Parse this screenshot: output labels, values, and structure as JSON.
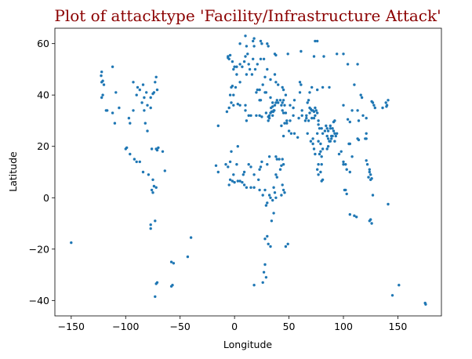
{
  "chart_data": {
    "type": "scatter",
    "title": "Plot of attacktype 'Facility/Infrastructure Attack'",
    "xlabel": "Longitude",
    "ylabel": "Latitude",
    "xlim": [
      -165,
      190
    ],
    "ylim": [
      -46,
      66
    ],
    "xticks": [
      -150,
      -100,
      -50,
      0,
      50,
      100,
      150
    ],
    "yticks": [
      -40,
      -20,
      0,
      20,
      40,
      60
    ],
    "grid": false,
    "legend": "none",
    "colors": {
      "title": "#8b0000",
      "marker": "#1f77b4"
    },
    "points": [
      [
        -150,
        -17.5
      ],
      [
        -122,
        49
      ],
      [
        -122.5,
        47.5
      ],
      [
        -121,
        45.5
      ],
      [
        -122,
        45
      ],
      [
        -120,
        44
      ],
      [
        -117,
        34
      ],
      [
        -118,
        34
      ],
      [
        -122,
        39
      ],
      [
        -121,
        40
      ],
      [
        -112,
        51
      ],
      [
        -109,
        41
      ],
      [
        -112,
        33
      ],
      [
        -110,
        29
      ],
      [
        -106,
        35
      ],
      [
        -97,
        31
      ],
      [
        -93,
        45
      ],
      [
        -90,
        40
      ],
      [
        -87,
        42
      ],
      [
        -89,
        43
      ],
      [
        -84,
        44
      ],
      [
        -83,
        39
      ],
      [
        -81,
        41
      ],
      [
        -80,
        36
      ],
      [
        -77,
        39
      ],
      [
        -75,
        40.5
      ],
      [
        -74,
        41
      ],
      [
        -71,
        42
      ],
      [
        -73,
        45
      ],
      [
        -72,
        47
      ],
      [
        -77,
        35
      ],
      [
        -80,
        26
      ],
      [
        -82,
        29
      ],
      [
        -83,
        34
      ],
      [
        -85,
        37
      ],
      [
        -93,
        34
      ],
      [
        -96,
        29
      ],
      [
        -100,
        19
      ],
      [
        -99,
        19.5
      ],
      [
        -96,
        17
      ],
      [
        -92,
        15
      ],
      [
        -90,
        14
      ],
      [
        -87,
        14
      ],
      [
        -84,
        10
      ],
      [
        -79,
        9
      ],
      [
        -76,
        19
      ],
      [
        -72,
        19
      ],
      [
        -71,
        18.5
      ],
      [
        -70,
        19.5
      ],
      [
        -66,
        18
      ],
      [
        -64,
        10.5
      ],
      [
        -75,
        7
      ],
      [
        -74,
        4.5
      ],
      [
        -75,
        2
      ],
      [
        -76,
        3
      ],
      [
        -72,
        4
      ],
      [
        -73,
        -9
      ],
      [
        -77,
        -12
      ],
      [
        -77,
        -10.5
      ],
      [
        -72,
        -33.5
      ],
      [
        -71,
        -33
      ],
      [
        -73,
        -38.5
      ],
      [
        -58,
        -34.5
      ],
      [
        -57,
        -34
      ],
      [
        -58,
        -25
      ],
      [
        -56,
        -25.5
      ],
      [
        -43,
        -23
      ],
      [
        -40,
        -15.5
      ],
      [
        -17,
        12.5
      ],
      [
        -15,
        10
      ],
      [
        -8,
        13
      ],
      [
        -7,
        33.5
      ],
      [
        -6,
        54.5
      ],
      [
        -6,
        55
      ],
      [
        -5,
        54
      ],
      [
        -4,
        55.5
      ],
      [
        -2,
        53
      ],
      [
        0,
        51
      ],
      [
        -1,
        50
      ],
      [
        2,
        48
      ],
      [
        2,
        51
      ],
      [
        -3,
        43
      ],
      [
        -2,
        43.5
      ],
      [
        1,
        43
      ],
      [
        -4,
        40
      ],
      [
        -3,
        37
      ],
      [
        -1,
        40
      ],
      [
        5,
        45
      ],
      [
        5,
        52
      ],
      [
        7,
        51
      ],
      [
        9,
        53
      ],
      [
        10,
        55
      ],
      [
        12,
        56
      ],
      [
        13,
        52
      ],
      [
        11,
        48
      ],
      [
        14,
        50
      ],
      [
        16,
        48
      ],
      [
        17,
        54
      ],
      [
        19,
        50
      ],
      [
        21,
        52
      ],
      [
        24,
        54
      ],
      [
        27,
        54
      ],
      [
        30,
        50
      ],
      [
        28,
        47
      ],
      [
        26,
        44
      ],
      [
        23,
        42
      ],
      [
        21,
        42
      ],
      [
        20,
        41
      ],
      [
        23,
        38
      ],
      [
        24,
        38
      ],
      [
        28,
        41
      ],
      [
        29,
        41
      ],
      [
        33,
        39
      ],
      [
        35,
        37
      ],
      [
        36,
        34
      ],
      [
        35,
        32
      ],
      [
        34,
        33.5
      ],
      [
        32,
        31
      ],
      [
        31,
        30
      ],
      [
        33,
        46
      ],
      [
        37,
        48
      ],
      [
        38,
        45
      ],
      [
        40,
        44
      ],
      [
        44,
        43
      ],
      [
        45,
        42
      ],
      [
        47,
        40
      ],
      [
        44,
        34
      ],
      [
        45,
        33
      ],
      [
        43,
        36
      ],
      [
        44,
        37
      ],
      [
        46,
        29
      ],
      [
        48,
        29
      ],
      [
        50,
        26
      ],
      [
        52,
        25
      ],
      [
        55,
        25
      ],
      [
        58,
        23.5
      ],
      [
        51,
        36
      ],
      [
        54,
        35
      ],
      [
        55,
        38
      ],
      [
        60,
        41
      ],
      [
        61,
        44
      ],
      [
        69,
        41
      ],
      [
        71,
        43
      ],
      [
        68,
        38
      ],
      [
        69,
        35
      ],
      [
        70,
        34.5
      ],
      [
        71,
        34
      ],
      [
        72,
        34
      ],
      [
        73,
        33.5
      ],
      [
        74,
        32
      ],
      [
        71,
        31
      ],
      [
        73,
        31
      ],
      [
        68,
        30
      ],
      [
        67,
        25
      ],
      [
        66,
        32
      ],
      [
        74,
        35
      ],
      [
        75,
        34
      ],
      [
        76,
        33
      ],
      [
        77,
        30
      ],
      [
        77,
        28.5
      ],
      [
        78,
        27
      ],
      [
        80,
        27
      ],
      [
        81,
        25
      ],
      [
        83,
        26
      ],
      [
        85,
        27
      ],
      [
        86,
        26
      ],
      [
        88,
        27
      ],
      [
        85,
        24
      ],
      [
        86,
        23
      ],
      [
        88,
        22
      ],
      [
        89,
        24
      ],
      [
        90,
        24
      ],
      [
        91,
        26
      ],
      [
        92,
        25
      ],
      [
        93,
        24
      ],
      [
        94,
        25
      ],
      [
        89,
        23
      ],
      [
        92,
        22
      ],
      [
        90,
        27
      ],
      [
        88,
        28
      ],
      [
        84,
        28
      ],
      [
        76,
        25
      ],
      [
        77,
        22
      ],
      [
        79,
        21
      ],
      [
        81,
        19
      ],
      [
        79,
        18
      ],
      [
        78,
        17
      ],
      [
        80,
        16
      ],
      [
        80,
        13
      ],
      [
        77,
        13
      ],
      [
        76,
        11
      ],
      [
        79,
        10
      ],
      [
        81,
        7
      ],
      [
        80,
        6.5
      ],
      [
        77,
        9
      ],
      [
        73,
        19
      ],
      [
        74,
        17
      ],
      [
        72,
        21
      ],
      [
        70,
        22
      ],
      [
        72,
        23
      ],
      [
        85,
        19
      ],
      [
        86,
        20
      ],
      [
        87,
        22
      ],
      [
        96,
        17
      ],
      [
        98,
        18
      ],
      [
        100,
        14
      ],
      [
        100,
        13
      ],
      [
        102,
        13
      ],
      [
        103,
        11
      ],
      [
        106,
        10
      ],
      [
        106,
        21
      ],
      [
        105,
        21
      ],
      [
        108,
        16
      ],
      [
        114,
        22.5
      ],
      [
        113,
        23
      ],
      [
        121,
        25
      ],
      [
        121,
        23
      ],
      [
        120,
        23
      ],
      [
        121,
        14.5
      ],
      [
        122,
        13
      ],
      [
        124,
        11
      ],
      [
        125,
        9
      ],
      [
        125,
        7
      ],
      [
        126,
        7.5
      ],
      [
        123,
        8
      ],
      [
        124,
        10
      ],
      [
        101,
        3
      ],
      [
        102,
        3
      ],
      [
        103,
        1.5
      ],
      [
        106,
        -6.5
      ],
      [
        110,
        -7
      ],
      [
        112,
        -7.5
      ],
      [
        125,
        -8.5
      ],
      [
        124,
        -9
      ],
      [
        126,
        -10
      ],
      [
        127,
        1
      ],
      [
        141,
        -2.5
      ],
      [
        145,
        -38
      ],
      [
        151,
        -34
      ],
      [
        175,
        -41
      ],
      [
        175.5,
        -41.5
      ],
      [
        140,
        36
      ],
      [
        139.5,
        35.5
      ],
      [
        136,
        35
      ],
      [
        139,
        37
      ],
      [
        141,
        38
      ],
      [
        129,
        35
      ],
      [
        126,
        37.5
      ],
      [
        128,
        36
      ],
      [
        127,
        37
      ],
      [
        116,
        40
      ],
      [
        117,
        39
      ],
      [
        121,
        31
      ],
      [
        114,
        30
      ],
      [
        104,
        30.5
      ],
      [
        106,
        29.5
      ],
      [
        108,
        34
      ],
      [
        113,
        34
      ],
      [
        118,
        32
      ],
      [
        100,
        36
      ],
      [
        92,
        30
      ],
      [
        91,
        29.5
      ],
      [
        87,
        43
      ],
      [
        81,
        43
      ],
      [
        76,
        42
      ],
      [
        94,
        56
      ],
      [
        100,
        56
      ],
      [
        82,
        55
      ],
      [
        73,
        55
      ],
      [
        61,
        57
      ],
      [
        49,
        56
      ],
      [
        37,
        56
      ],
      [
        38,
        55.5
      ],
      [
        30,
        60
      ],
      [
        31,
        59
      ],
      [
        25,
        60
      ],
      [
        24,
        61
      ],
      [
        18,
        59
      ],
      [
        11,
        59
      ],
      [
        10,
        63
      ],
      [
        5,
        60
      ],
      [
        17,
        61
      ],
      [
        18,
        62
      ],
      [
        74,
        61
      ],
      [
        76,
        61
      ],
      [
        113,
        52
      ],
      [
        110,
        44
      ],
      [
        104,
        52
      ],
      [
        60,
        45
      ],
      [
        67,
        37
      ],
      [
        69,
        33
      ],
      [
        62,
        34
      ],
      [
        62,
        32
      ],
      [
        66,
        31
      ],
      [
        65,
        30
      ],
      [
        59,
        31
      ],
      [
        54,
        32
      ],
      [
        51,
        30
      ],
      [
        48,
        30
      ],
      [
        47,
        33
      ],
      [
        46,
        36
      ],
      [
        45,
        38
      ],
      [
        42,
        38
      ],
      [
        39,
        38
      ],
      [
        38,
        37
      ],
      [
        37,
        36
      ],
      [
        40,
        37
      ],
      [
        43,
        28
      ],
      [
        45,
        24
      ],
      [
        41,
        15
      ],
      [
        44,
        15
      ],
      [
        45,
        13
      ],
      [
        43,
        12.5
      ],
      [
        42,
        11
      ],
      [
        38,
        16
      ],
      [
        39,
        15
      ],
      [
        38,
        9
      ],
      [
        39,
        8
      ],
      [
        36,
        4
      ],
      [
        37,
        2
      ],
      [
        38,
        0
      ],
      [
        35,
        -1
      ],
      [
        33,
        0
      ],
      [
        32,
        1
      ],
      [
        30,
        -2
      ],
      [
        29,
        -3
      ],
      [
        36,
        -6
      ],
      [
        34,
        -9
      ],
      [
        30,
        -15
      ],
      [
        28,
        -16
      ],
      [
        31,
        -18
      ],
      [
        33,
        -19
      ],
      [
        28,
        -26
      ],
      [
        27,
        -29
      ],
      [
        29,
        -31
      ],
      [
        26,
        -33
      ],
      [
        18,
        -34
      ],
      [
        44,
        5
      ],
      [
        45,
        3
      ],
      [
        46,
        2
      ],
      [
        43,
        1
      ],
      [
        47,
        -19
      ],
      [
        49,
        -18
      ],
      [
        32,
        16
      ],
      [
        30,
        13
      ],
      [
        25,
        14
      ],
      [
        24,
        12
      ],
      [
        23,
        11
      ],
      [
        22,
        7
      ],
      [
        18,
        9
      ],
      [
        15,
        12
      ],
      [
        13,
        13
      ],
      [
        9,
        10
      ],
      [
        8,
        9
      ],
      [
        7,
        6
      ],
      [
        5,
        6.5
      ],
      [
        3,
        6.5
      ],
      [
        0,
        6
      ],
      [
        -2,
        6.5
      ],
      [
        -5,
        5
      ],
      [
        -4,
        7
      ],
      [
        -1,
        9
      ],
      [
        2,
        13
      ],
      [
        -6,
        12
      ],
      [
        -4,
        14
      ],
      [
        9,
        5
      ],
      [
        11,
        4
      ],
      [
        15,
        4
      ],
      [
        18,
        4
      ],
      [
        23,
        3
      ],
      [
        26,
        1
      ],
      [
        28,
        3
      ],
      [
        -15,
        28
      ],
      [
        -3,
        18
      ],
      [
        3,
        20
      ],
      [
        10,
        34
      ],
      [
        10,
        36
      ],
      [
        5,
        36
      ],
      [
        3,
        36.5
      ],
      [
        -1,
        36
      ],
      [
        -5,
        35
      ],
      [
        11,
        30
      ],
      [
        13,
        32
      ],
      [
        15,
        32
      ],
      [
        20,
        32
      ],
      [
        23,
        32
      ],
      [
        25,
        31.5
      ],
      [
        29,
        33
      ],
      [
        31,
        31.5
      ],
      [
        32,
        32
      ],
      [
        33,
        33
      ],
      [
        33.5,
        35
      ],
      [
        35.5,
        33.5
      ],
      [
        36.5,
        34
      ],
      [
        35,
        35.5
      ]
    ]
  }
}
